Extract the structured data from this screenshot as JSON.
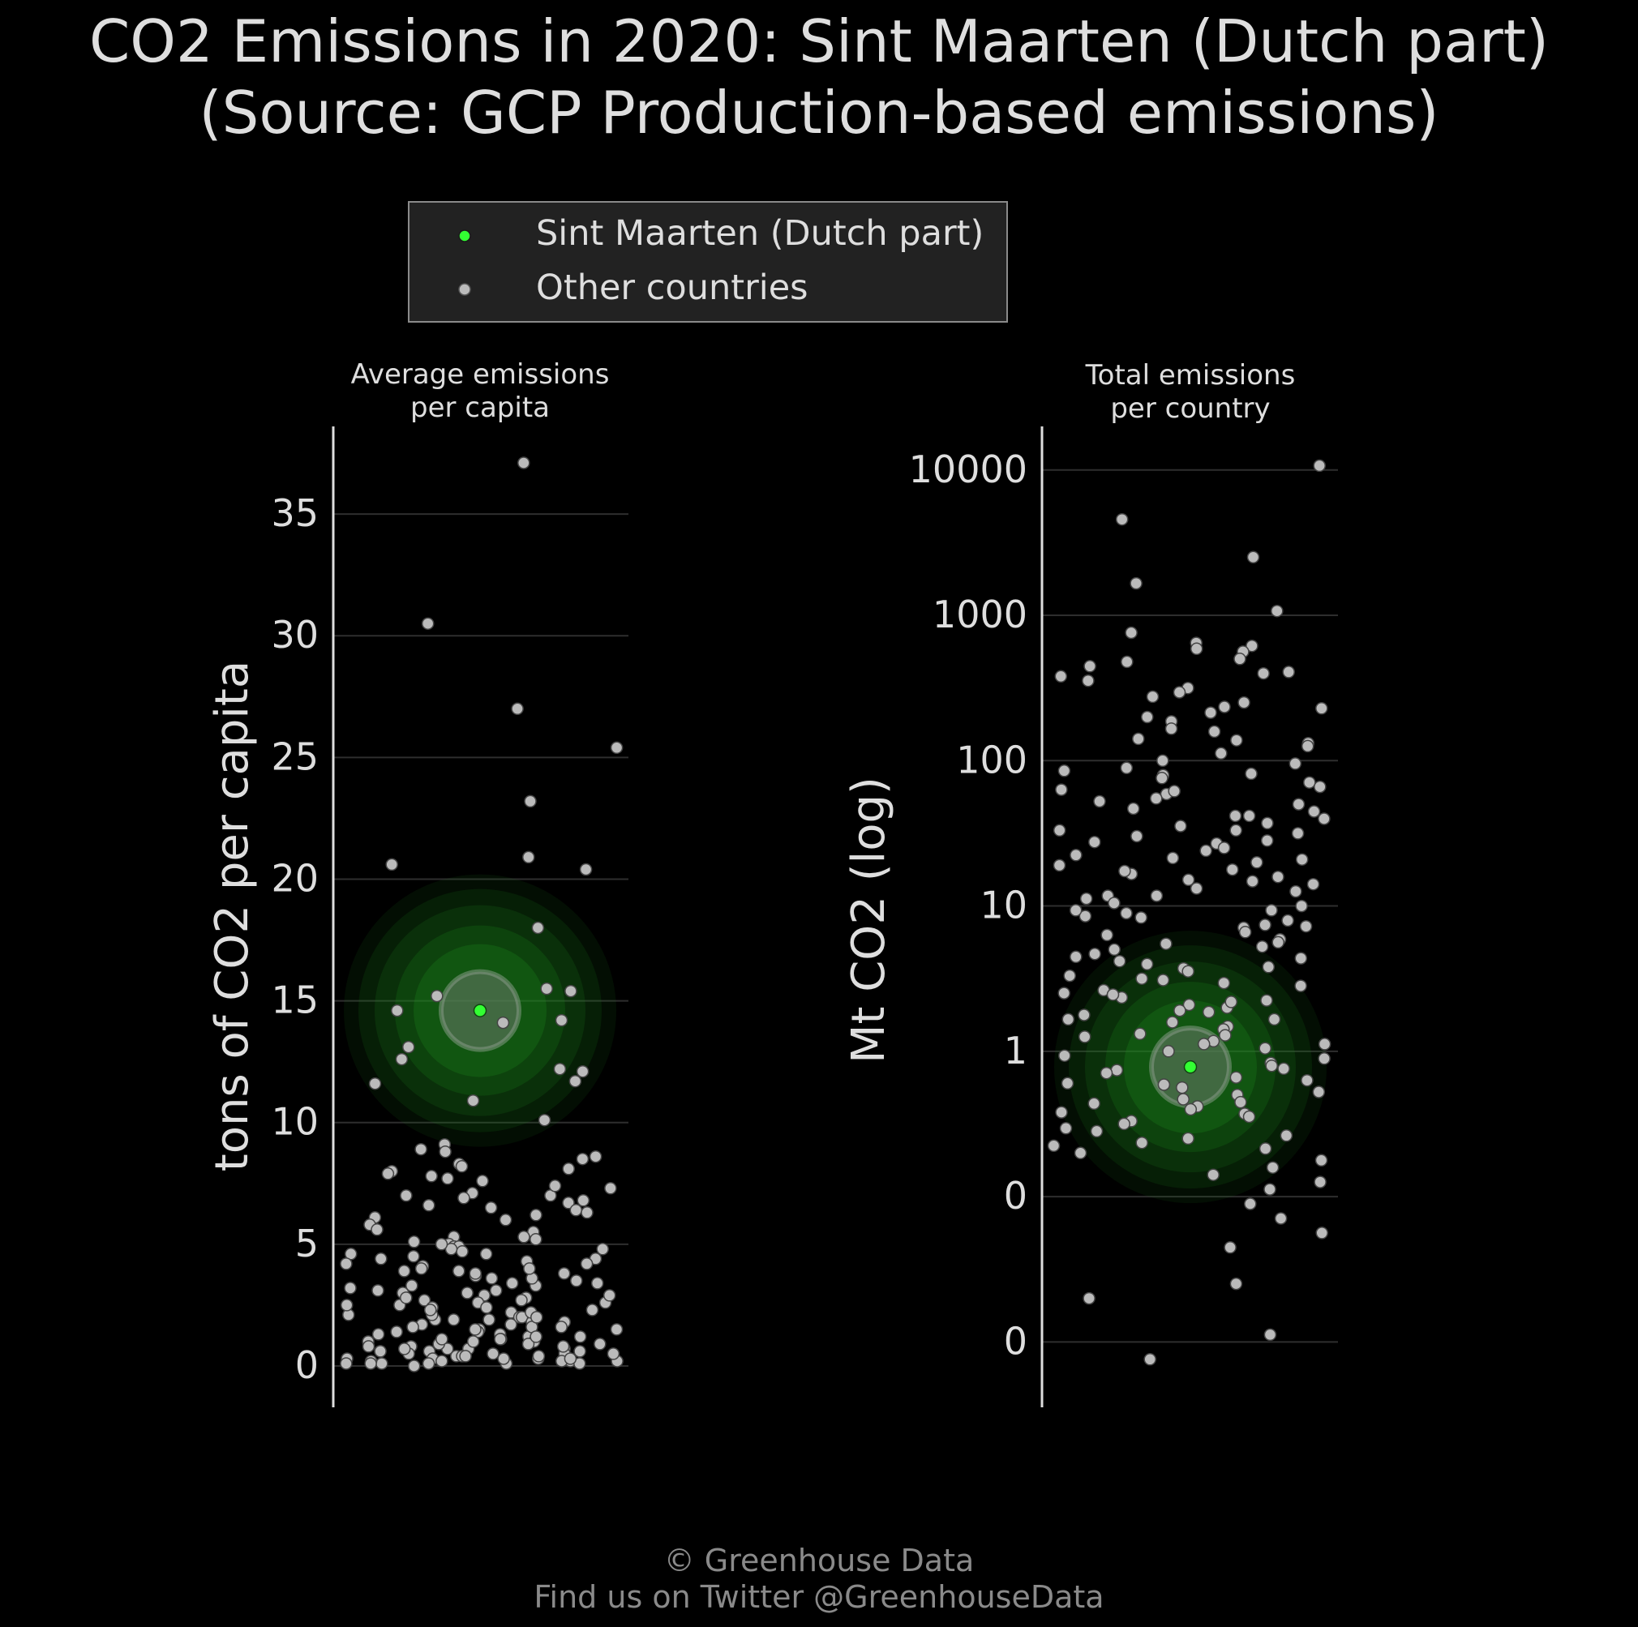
{
  "title_line1": "CO2 Emissions in 2020: Sint Maarten (Dutch part)",
  "title_line2": "(Source: GCP Production-based emissions)",
  "legend": {
    "highlight_label": "Sint Maarten (Dutch part)",
    "others_label": "Other countries"
  },
  "footer": {
    "line1": "© Greenhouse Data",
    "line2": "Find us on Twitter @GreenhouseData"
  },
  "colors": {
    "background": "#000000",
    "text": "#dedede",
    "highlight": "#33ff33",
    "others": "#bbbbbb",
    "grid": "#2e2e2e",
    "legend_bg": "#222222"
  },
  "chart_data": [
    {
      "type": "scatter",
      "panel_title_line1": "Average emissions",
      "panel_title_line2": "per capita",
      "ylabel": "tons of CO2 per capita",
      "yscale": "linear",
      "ylim": [
        -1.7,
        38.6
      ],
      "yticks": [
        0,
        5,
        10,
        15,
        20,
        25,
        30,
        35
      ],
      "ytick_labels": [
        "0",
        "5",
        "10",
        "15",
        "20",
        "25",
        "30",
        "35"
      ],
      "grid": true,
      "highlight": {
        "name": "Sint Maarten (Dutch part)",
        "value": 14.6
      },
      "others": {
        "name": "Other countries",
        "values": [
          37.1,
          30.5,
          27.0,
          25.4,
          23.2,
          20.9,
          20.6,
          20.4,
          18.0,
          15.4,
          15.5,
          15.2,
          14.2,
          14.6,
          14.1,
          13.1,
          12.6,
          12.2,
          12.1,
          11.7,
          11.6,
          10.9,
          10.1,
          9.1,
          8.9,
          8.8,
          8.6,
          8.5,
          8.3,
          8.2,
          8.1,
          8.0,
          7.9,
          7.8,
          7.7,
          7.6,
          7.3,
          7.1,
          7.0,
          7.0,
          6.9,
          6.8,
          6.7,
          6.6,
          6.5,
          6.4,
          6.2,
          6.1,
          6.0,
          5.8,
          5.5,
          5.3,
          5.2,
          5.1,
          5.0,
          4.9,
          4.9,
          4.8,
          4.7,
          4.6,
          4.5,
          4.4,
          4.3,
          4.2,
          4.1,
          4.0,
          3.9,
          3.9,
          3.8,
          3.7,
          3.6,
          3.5,
          3.4,
          3.3,
          3.2,
          3.1,
          3.0,
          2.9,
          2.8,
          2.7,
          2.6,
          2.6,
          2.5,
          2.4,
          2.3,
          2.2,
          2.1,
          2.0,
          2.0,
          1.9,
          1.8,
          1.8,
          1.7,
          1.6,
          1.5,
          1.5,
          1.4,
          1.3,
          1.2,
          1.2,
          1.1,
          1.0,
          1.0,
          0.9,
          0.8,
          0.8,
          0.7,
          0.7,
          0.6,
          0.6,
          0.5,
          0.5,
          0.4,
          0.4,
          0.3,
          0.3,
          0.3,
          0.2,
          0.2,
          0.2,
          0.1,
          0.1,
          0.1,
          0.1,
          0.0,
          1.9,
          2.7,
          3.6,
          0.9,
          1.4,
          5.3,
          4.4,
          2.2,
          0.6,
          1.1,
          3.0,
          4.0,
          0.4,
          2.4,
          1.6,
          0.2,
          0.7,
          3.3,
          1.9,
          5.6,
          0.5,
          2.9,
          1.2,
          4.6,
          0.3,
          0.8,
          2.1,
          1.5,
          3.8,
          0.1,
          6.3,
          0.9,
          2.5,
          1.7,
          4.8,
          0.2,
          0.6,
          3.1,
          1.3,
          7.4,
          0.4,
          2.0,
          5.0,
          0.7,
          1.0,
          3.4,
          2.3,
          0.1,
          4.2,
          1.1,
          0.5,
          2.8,
          1.6,
          0.3
        ]
      }
    },
    {
      "type": "scatter",
      "panel_title_line1": "Total emissions",
      "panel_title_line2": "per country",
      "ylabel": "Mt CO2 (log)",
      "yscale": "log",
      "ylim_log10": [
        -2.45,
        4.3
      ],
      "yticks": [
        0.01,
        0.1,
        1,
        10,
        100,
        1000,
        10000
      ],
      "ytick_labels": [
        "0",
        "0",
        "1",
        "10",
        "100",
        "1000",
        "10000"
      ],
      "grid": true,
      "highlight": {
        "name": "Sint Maarten (Dutch part)",
        "value": 0.78
      },
      "others": {
        "name": "Other countries",
        "values_log10": [
          4.03,
          3.66,
          3.4,
          3.22,
          3.03,
          2.88,
          2.81,
          2.79,
          2.77,
          2.75,
          2.7,
          2.68,
          2.65,
          2.6,
          2.58,
          2.55,
          2.5,
          2.47,
          2.44,
          2.4,
          2.37,
          2.33,
          2.3,
          2.27,
          2.22,
          2.2,
          2.15,
          2.12,
          2.1,
          2.05,
          2.0,
          1.98,
          1.95,
          1.93,
          1.9,
          1.88,
          1.85,
          1.82,
          1.8,
          1.77,
          1.74,
          1.72,
          1.7,
          1.67,
          1.65,
          1.62,
          1.6,
          1.57,
          1.55,
          1.52,
          1.5,
          1.48,
          1.45,
          1.43,
          1.4,
          1.38,
          1.35,
          1.32,
          1.3,
          1.28,
          1.25,
          1.22,
          1.2,
          1.17,
          1.15,
          1.12,
          1.1,
          1.07,
          1.05,
          1.02,
          1.0,
          0.97,
          0.95,
          0.92,
          0.9,
          0.87,
          0.85,
          0.82,
          0.8,
          0.77,
          0.75,
          0.72,
          0.7,
          0.67,
          0.65,
          0.62,
          0.6,
          0.57,
          0.55,
          0.52,
          0.5,
          0.47,
          0.45,
          0.42,
          0.4,
          0.37,
          0.35,
          0.32,
          0.3,
          0.27,
          0.25,
          0.22,
          0.2,
          0.17,
          0.15,
          0.12,
          0.1,
          0.07,
          0.05,
          0.02,
          0.0,
          -0.03,
          -0.05,
          -0.08,
          -0.1,
          -0.13,
          -0.15,
          -0.18,
          -0.2,
          -0.23,
          -0.25,
          -0.28,
          -0.3,
          -0.33,
          -0.35,
          -0.38,
          -0.4,
          -0.43,
          -0.45,
          -0.48,
          -0.5,
          -0.53,
          -0.55,
          -0.58,
          -0.6,
          -0.63,
          -0.65,
          -0.7,
          -0.75,
          -0.8,
          -0.85,
          -0.9,
          -0.95,
          -1.05,
          -1.15,
          -1.25,
          -1.35,
          -1.6,
          -1.7,
          -1.95,
          -2.12,
          1.62,
          1.18,
          0.64,
          0.28,
          -0.42,
          2.14,
          0.93,
          1.44,
          0.05,
          0.49,
          1.79,
          -0.22,
          0.86,
          1.33,
          0.11,
          2.36,
          0.58,
          -0.67,
          1.07,
          0.39,
          1.91,
          0.22,
          1.52,
          -0.12,
          0.74,
          2.61,
          0.34,
          1.24,
          -0.36,
          0.97
        ]
      }
    }
  ]
}
